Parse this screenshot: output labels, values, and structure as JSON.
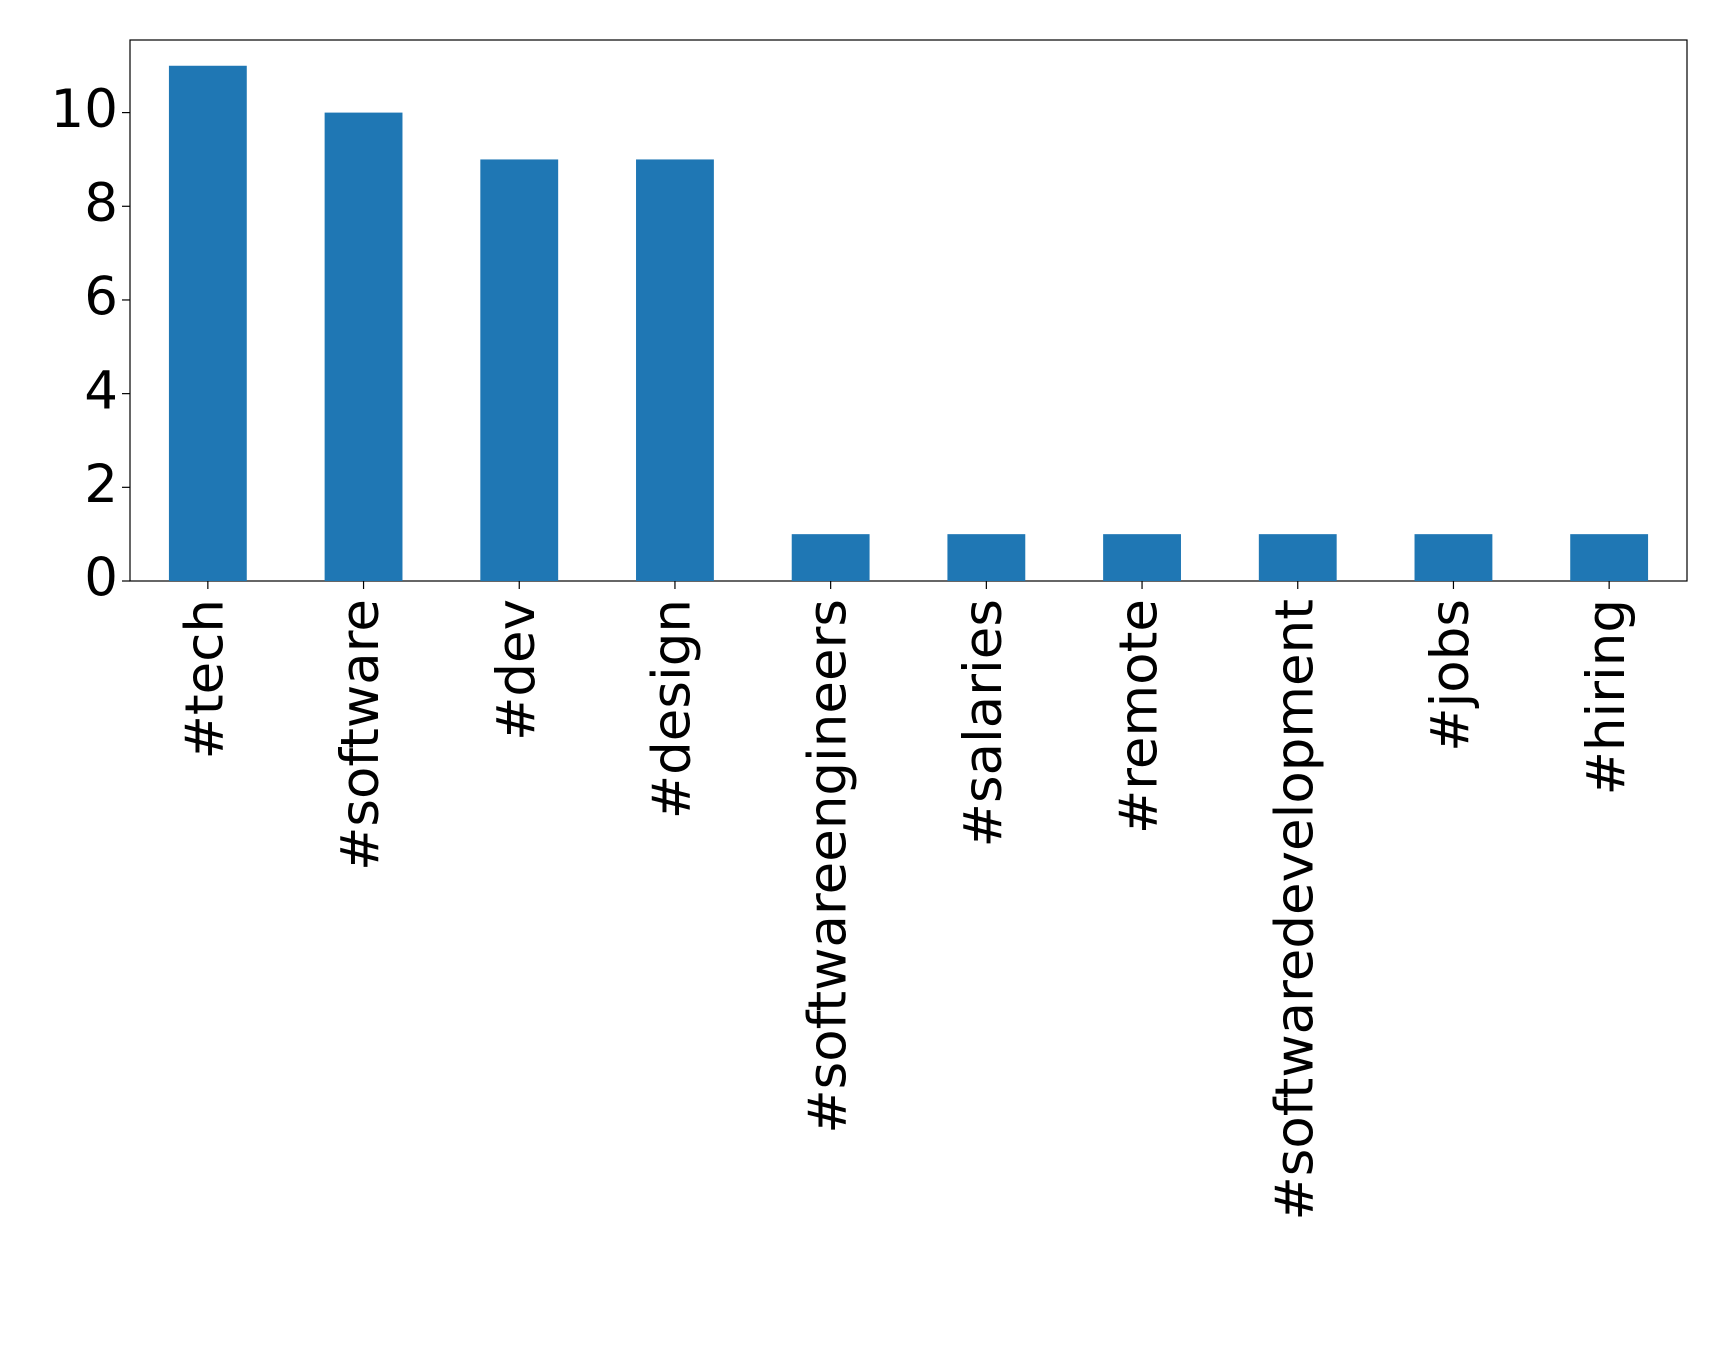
{
  "chart_data": {
    "type": "bar",
    "categories": [
      "#tech",
      "#software",
      "#dev",
      "#design",
      "#softwareengineers",
      "#salaries",
      "#remote",
      "#softwaredevelopment",
      "#jobs",
      "#hiring"
    ],
    "values": [
      11,
      10,
      9,
      9,
      1,
      1,
      1,
      1,
      1,
      1
    ],
    "color": "#1f77b4",
    "ylim": [
      0,
      11.55
    ],
    "yticks": [
      0,
      2,
      4,
      6,
      8,
      10
    ],
    "grid": false
  }
}
